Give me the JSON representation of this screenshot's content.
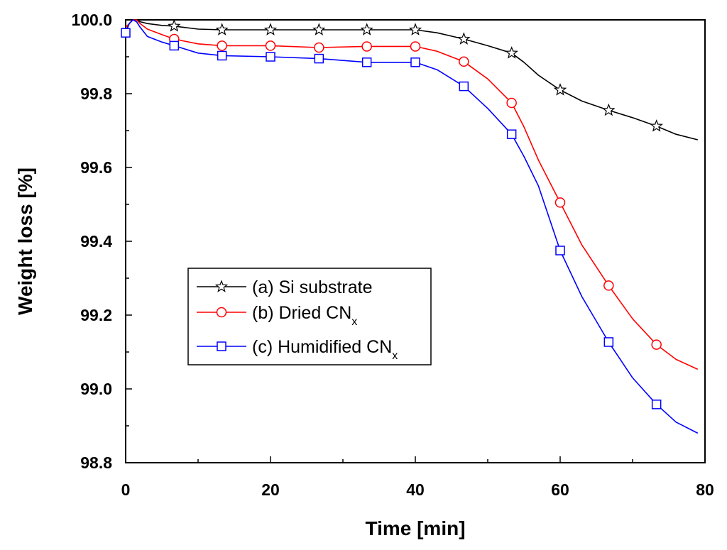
{
  "chart_data": {
    "type": "line",
    "title": "",
    "xlabel": "Time [min]",
    "ylabel": "Weight loss [%]",
    "xlim": [
      0,
      80
    ],
    "ylim": [
      98.8,
      100.0
    ],
    "xticks": [
      0,
      20,
      40,
      60,
      80
    ],
    "xtick_labels": [
      "0",
      "20",
      "40",
      "60",
      "80"
    ],
    "yticks": [
      98.8,
      99.0,
      99.2,
      99.4,
      99.6,
      99.8,
      100.0
    ],
    "ytick_labels": [
      "98.8",
      "99.0",
      "99.2",
      "99.4",
      "99.6",
      "99.8",
      "100.0"
    ],
    "grid": false,
    "legend_position": "lower-left",
    "series": [
      {
        "name": "(a) Si substrate",
        "legend_main": "(a) Si substrate",
        "legend_sub": "",
        "color": "#000000",
        "marker": "star",
        "x": [
          0,
          0.5,
          1,
          1.5,
          2,
          3,
          5,
          6.7,
          10,
          13.3,
          20,
          26.7,
          33.3,
          40,
          43,
          46.7,
          50,
          53.3,
          55,
          57,
          60,
          63,
          66.7,
          70,
          73.3,
          76,
          79
        ],
        "y": [
          99.97,
          99.99,
          100.0,
          100.0,
          99.995,
          99.99,
          99.985,
          99.983,
          99.975,
          99.973,
          99.973,
          99.973,
          99.973,
          99.973,
          99.965,
          99.948,
          99.93,
          99.91,
          99.885,
          99.85,
          99.81,
          99.78,
          99.755,
          99.735,
          99.712,
          99.69,
          99.675
        ],
        "marker_x": [
          6.7,
          13.3,
          20,
          26.7,
          33.3,
          40,
          46.7,
          53.3,
          60,
          66.7,
          73.3
        ],
        "marker_y": [
          99.983,
          99.973,
          99.973,
          99.973,
          99.973,
          99.973,
          99.948,
          99.91,
          99.81,
          99.755,
          99.712
        ]
      },
      {
        "name": "(b) Dried CNx",
        "legend_main": "(b) Dried CN",
        "legend_sub": "x",
        "color": "#ff0000",
        "marker": "circle",
        "x": [
          0,
          0.5,
          1,
          1.5,
          2,
          3,
          5,
          6.7,
          10,
          13.3,
          20,
          26.7,
          33.3,
          40,
          43,
          46.7,
          50,
          53.3,
          55,
          57,
          60,
          63,
          66.7,
          70,
          73.3,
          76,
          79
        ],
        "y": [
          99.98,
          99.99,
          100.0,
          100.0,
          99.99,
          99.975,
          99.96,
          99.948,
          99.935,
          99.93,
          99.93,
          99.925,
          99.928,
          99.928,
          99.915,
          99.887,
          99.84,
          99.775,
          99.71,
          99.62,
          99.505,
          99.39,
          99.28,
          99.19,
          99.12,
          99.08,
          99.053
        ],
        "marker_x": [
          6.7,
          13.3,
          20,
          26.7,
          33.3,
          40,
          46.7,
          53.3,
          60,
          66.7,
          73.3
        ],
        "marker_y": [
          99.948,
          99.93,
          99.93,
          99.925,
          99.928,
          99.928,
          99.887,
          99.775,
          99.505,
          99.28,
          99.12
        ]
      },
      {
        "name": "(c) Humidified CNx",
        "legend_main": "(c) Humidified CN",
        "legend_sub": "x",
        "color": "#0000ff",
        "marker": "square",
        "x": [
          0,
          0.5,
          1,
          1.5,
          2,
          3,
          5,
          6.7,
          10,
          13.3,
          20,
          26.7,
          33.3,
          40,
          43,
          46.7,
          50,
          53.3,
          55,
          57,
          60,
          63,
          66.7,
          70,
          73.3,
          76,
          79
        ],
        "y": [
          99.965,
          99.99,
          100.0,
          99.995,
          99.98,
          99.955,
          99.94,
          99.93,
          99.91,
          99.903,
          99.9,
          99.895,
          99.885,
          99.885,
          99.865,
          99.82,
          99.76,
          99.69,
          99.63,
          99.55,
          99.375,
          99.25,
          99.127,
          99.03,
          98.958,
          98.91,
          98.88
        ],
        "marker_x": [
          0,
          6.7,
          13.3,
          20,
          26.7,
          33.3,
          40,
          46.7,
          53.3,
          60,
          66.7,
          73.3
        ],
        "marker_y": [
          99.965,
          99.93,
          99.903,
          99.9,
          99.895,
          99.885,
          99.885,
          99.82,
          99.69,
          99.375,
          99.127,
          98.958
        ]
      }
    ]
  }
}
